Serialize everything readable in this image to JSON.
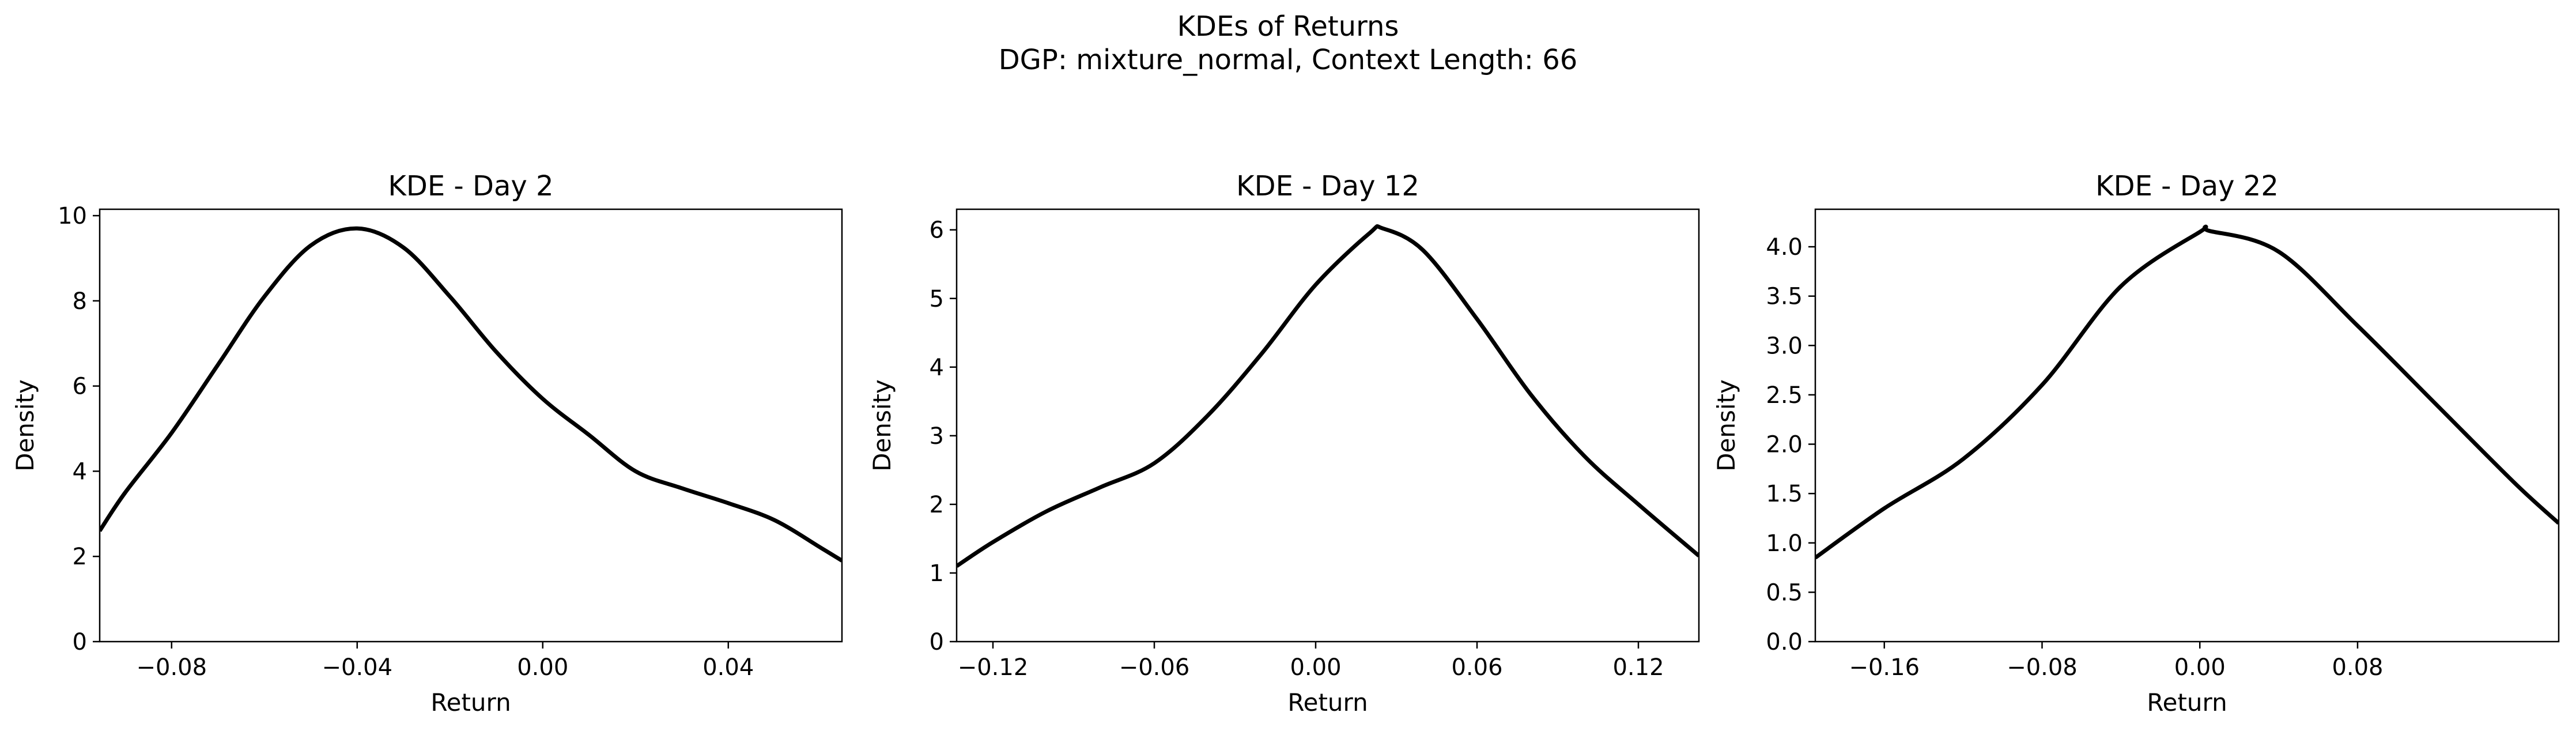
{
  "figure": {
    "title_line1": "KDEs of Returns",
    "title_line2": "DGP: mixture_normal, Context Length: 66"
  },
  "chart_data": [
    {
      "type": "line",
      "title": "KDE - Day 2",
      "xlabel": "Return",
      "ylabel": "Density",
      "xlim": [
        -0.0955,
        0.0645
      ],
      "ylim": [
        0,
        10.15
      ],
      "xticks": [
        -0.08,
        -0.04,
        0.0,
        0.04
      ],
      "xtick_labels": [
        "−0.08",
        "−0.04",
        "0.00",
        "0.04"
      ],
      "yticks": [
        0,
        2,
        4,
        6,
        8,
        10
      ],
      "ytick_labels": [
        "0",
        "2",
        "4",
        "6",
        "8",
        "10"
      ],
      "grid": false,
      "series": [
        {
          "color": "#000000",
          "x": [
            -0.0955,
            -0.09,
            -0.08,
            -0.07,
            -0.06,
            -0.05,
            -0.04,
            -0.03,
            -0.02,
            -0.01,
            0.0,
            0.01,
            0.02,
            0.03,
            0.04,
            0.05,
            0.06,
            0.0645
          ],
          "y": [
            2.6,
            3.5,
            4.9,
            6.5,
            8.1,
            9.3,
            9.7,
            9.25,
            8.1,
            6.8,
            5.7,
            4.85,
            4.0,
            3.6,
            3.25,
            2.85,
            2.2,
            1.9
          ]
        }
      ]
    },
    {
      "type": "line",
      "title": "KDE - Day 12",
      "xlabel": "Return",
      "ylabel": "Density",
      "xlim": [
        -0.1335,
        0.1425
      ],
      "ylim": [
        0,
        6.3
      ],
      "xticks": [
        -0.12,
        -0.06,
        0.0,
        0.06,
        0.12
      ],
      "xtick_labels": [
        "−0.12",
        "−0.06",
        "0.00",
        "0.06",
        "0.12"
      ],
      "yticks": [
        0,
        1,
        2,
        3,
        4,
        5,
        6
      ],
      "ytick_labels": [
        "0",
        "1",
        "2",
        "3",
        "4",
        "5",
        "6"
      ],
      "grid": false,
      "series": [
        {
          "color": "#000000",
          "x": [
            -0.1335,
            -0.12,
            -0.1,
            -0.08,
            -0.06,
            -0.04,
            -0.02,
            0.0,
            0.02,
            0.025,
            0.04,
            0.06,
            0.08,
            0.1,
            0.12,
            0.1425
          ],
          "y": [
            1.1,
            1.45,
            1.9,
            2.25,
            2.6,
            3.3,
            4.2,
            5.2,
            5.95,
            6.02,
            5.7,
            4.7,
            3.6,
            2.7,
            2.0,
            1.25
          ]
        }
      ]
    },
    {
      "type": "line",
      "title": "KDE - Day 22",
      "xlabel": "Return",
      "ylabel": "Density",
      "xlim": [
        -0.195,
        0.182
      ],
      "ylim": [
        0,
        4.38
      ],
      "xticks": [
        -0.16,
        -0.08,
        0.0,
        0.08
      ],
      "xtick_labels": [
        "−0.16",
        "−0.08",
        "0.00",
        "0.08"
      ],
      "yticks": [
        0.0,
        0.5,
        1.0,
        1.5,
        2.0,
        2.5,
        3.0,
        3.5,
        4.0
      ],
      "ytick_labels": [
        "0.0",
        "0.5",
        "1.0",
        "1.5",
        "2.0",
        "2.5",
        "3.0",
        "3.5",
        "4.0"
      ],
      "grid": false,
      "series": [
        {
          "color": "#000000",
          "x": [
            -0.195,
            -0.16,
            -0.12,
            -0.08,
            -0.04,
            0.0,
            0.005,
            0.04,
            0.08,
            0.12,
            0.16,
            0.182
          ],
          "y": [
            0.85,
            1.35,
            1.85,
            2.6,
            3.6,
            4.15,
            4.16,
            3.95,
            3.2,
            2.4,
            1.6,
            1.2
          ]
        }
      ]
    }
  ]
}
